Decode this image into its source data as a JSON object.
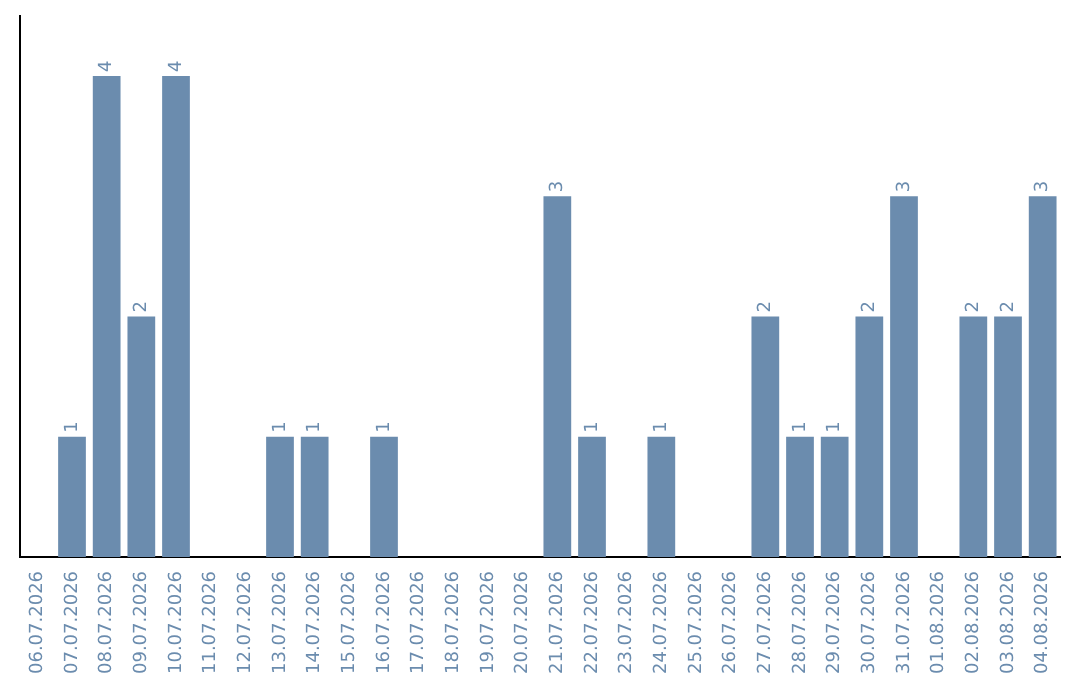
{
  "chart_data": {
    "type": "bar",
    "categories": [
      "06.07.2026",
      "07.07.2026",
      "08.07.2026",
      "09.07.2026",
      "10.07.2026",
      "11.07.2026",
      "12.07.2026",
      "13.07.2026",
      "14.07.2026",
      "15.07.2026",
      "16.07.2026",
      "17.07.2026",
      "18.07.2026",
      "19.07.2026",
      "20.07.2026",
      "21.07.2026",
      "22.07.2026",
      "23.07.2026",
      "24.07.2026",
      "25.07.2026",
      "26.07.2026",
      "27.07.2026",
      "28.07.2026",
      "29.07.2026",
      "30.07.2026",
      "31.07.2026",
      "01.08.2026",
      "02.08.2026",
      "03.08.2026",
      "04.08.2026"
    ],
    "values": [
      0,
      1,
      4,
      2,
      4,
      0,
      0,
      1,
      1,
      0,
      1,
      0,
      0,
      0,
      0,
      3,
      1,
      0,
      1,
      0,
      0,
      2,
      1,
      1,
      2,
      3,
      0,
      2,
      2,
      3
    ],
    "value_labels": [
      null,
      "1",
      "4",
      "2",
      "4",
      null,
      null,
      "1",
      "1",
      null,
      "1",
      null,
      null,
      null,
      null,
      "3",
      "1",
      null,
      "1",
      null,
      null,
      "2",
      "1",
      "1",
      "2",
      "3",
      null,
      "2",
      "2",
      "3"
    ],
    "color": "#6b8cae",
    "grid": false,
    "legend": false,
    "tick_labels": "x"
  }
}
